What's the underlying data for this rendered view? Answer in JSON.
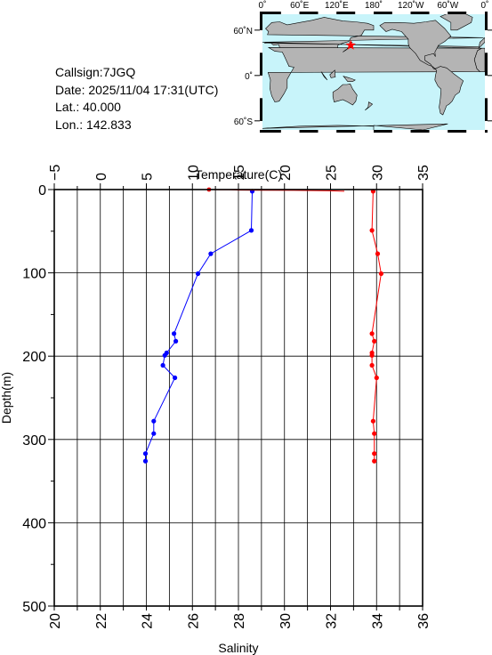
{
  "info": {
    "callsign": "Callsign:7JGQ",
    "date": "Date:  2025/11/04 17:31(UTC)",
    "lat": "Lat.:  40.000",
    "lon": "Lon.:  142.833"
  },
  "map": {
    "lon_labels": [
      "0˚",
      "60˚E",
      "120˚E",
      "180˚",
      "120˚W",
      "60˚W",
      "0˚"
    ],
    "lat_labels": [
      "60˚N",
      "0˚",
      "60˚S"
    ],
    "ocean_color": "#c8f4fa",
    "land_color": "#b4b4b4",
    "marker": {
      "lon": 142.833,
      "lat": 40.0,
      "symbol": "star",
      "color": "#ff0000"
    }
  },
  "chart_data": {
    "type": "line",
    "ylabel": "Depth(m)",
    "ylim": [
      0,
      500
    ],
    "y_inverted": true,
    "y_ticks": [
      "0",
      "100",
      "200",
      "300",
      "400",
      "500"
    ],
    "grid": true,
    "axes": [
      {
        "name": "temperature",
        "title": "Temperature(C)",
        "position": "top",
        "lim": [
          -5,
          35
        ],
        "ticks": [
          "−5",
          "0",
          "5",
          "10",
          "15",
          "20",
          "25",
          "30",
          "35"
        ]
      },
      {
        "name": "salinity",
        "title": "Salinity",
        "position": "bottom",
        "lim": [
          20,
          36
        ],
        "ticks": [
          "20",
          "22",
          "24",
          "26",
          "28",
          "30",
          "32",
          "34",
          "36"
        ]
      }
    ],
    "series": [
      {
        "axis": "temperature",
        "color": "#0000ff",
        "points": [
          [
            16.5,
            2
          ],
          [
            16.4,
            49
          ],
          [
            12.0,
            77
          ],
          [
            10.6,
            101
          ],
          [
            8.0,
            173
          ],
          [
            8.2,
            182
          ],
          [
            7.2,
            196
          ],
          [
            7.0,
            199
          ],
          [
            6.8,
            211
          ],
          [
            8.1,
            226
          ],
          [
            5.8,
            278
          ],
          [
            5.8,
            293
          ],
          [
            4.9,
            317
          ],
          [
            4.9,
            326
          ]
        ]
      },
      {
        "axis": "salinity",
        "color": "#ff0000",
        "points": [
          [
            33.85,
            2
          ],
          [
            33.8,
            49
          ],
          [
            34.05,
            77
          ],
          [
            34.2,
            101
          ],
          [
            33.8,
            173
          ],
          [
            33.9,
            182
          ],
          [
            33.8,
            196
          ],
          [
            33.8,
            199
          ],
          [
            33.8,
            211
          ],
          [
            34.0,
            226
          ],
          [
            33.85,
            278
          ],
          [
            33.9,
            293
          ],
          [
            33.9,
            317
          ],
          [
            33.9,
            326
          ]
        ]
      },
      {
        "axis": "temperature",
        "color": "#ff0000",
        "style": "surface",
        "points": [
          [
            11.8,
            0
          ],
          [
            13.0,
            0.2
          ],
          [
            14.0,
            0.3
          ],
          [
            15.0,
            0.6
          ],
          [
            17.0,
            0.8
          ],
          [
            21.0,
            1.0
          ],
          [
            25.0,
            1.5
          ],
          [
            26.5,
            2.0
          ]
        ]
      }
    ]
  }
}
